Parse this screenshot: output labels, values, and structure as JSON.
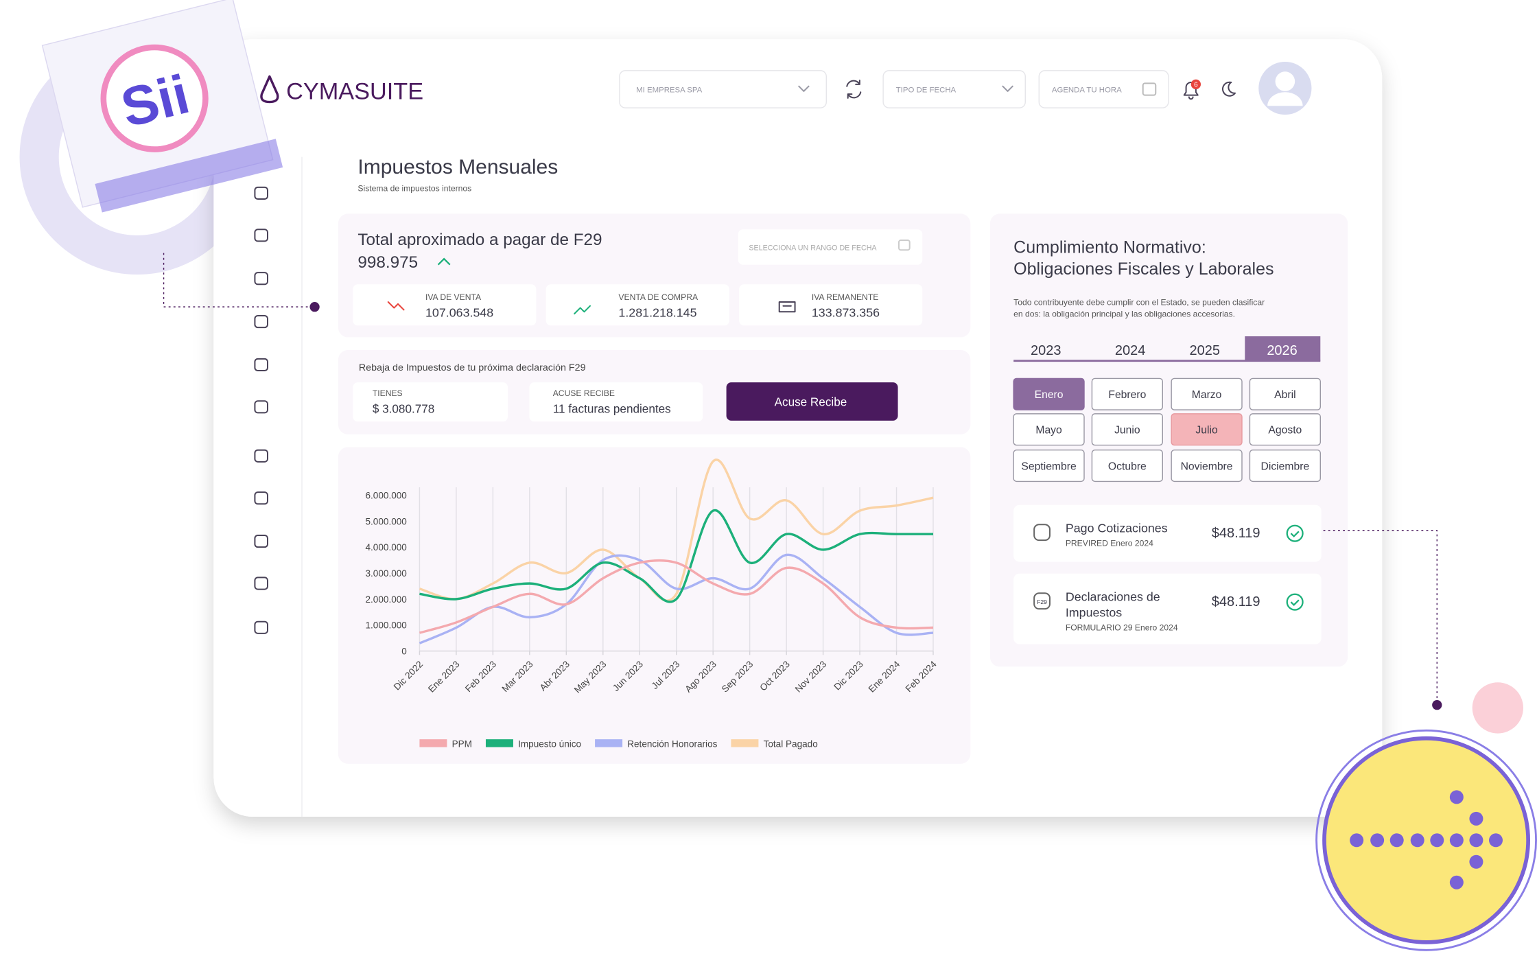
{
  "logo": {
    "sii": "Sii",
    "brand": "CYMASUITE"
  },
  "header": {
    "company_select": "MI EMPRESA SPA",
    "date_type": "TIPO DE FECHA",
    "agenda": "AGENDA TU HORA",
    "notifications": "6"
  },
  "page": {
    "title": "Impuestos Mensuales",
    "subtitle": "Sistema de impuestos internos"
  },
  "summary": {
    "title": "Total aproximado a pagar de F29",
    "total": "998.975",
    "date_range": "SELECCIONA UN RANGO DE FECHA",
    "cards": [
      {
        "label": "IVA DE VENTA",
        "value": "107.063.548"
      },
      {
        "label": "VENTA DE COMPRA",
        "value": "1.281.218.145"
      },
      {
        "label": "IVA REMANENTE",
        "value": "133.873.356"
      }
    ]
  },
  "rebate": {
    "title": "Rebaja de Impuestos de tu próxima declaración F29",
    "has_label": "TIENES",
    "has_value": "$ 3.080.778",
    "receipt_label": "ACUSE RECIBE",
    "receipt_value": "11 facturas pendientes",
    "button": "Acuse Recibe"
  },
  "chart_data": {
    "type": "line",
    "categories": [
      "Dic 2022",
      "Ene 2023",
      "Feb 2023",
      "Mar 2023",
      "Abr 2023",
      "May 2023",
      "Jun 2023",
      "Jul 2023",
      "Ago 2023",
      "Sep 2023",
      "Oct 2023",
      "Nov 2023",
      "Dic 2023",
      "Ene 2024",
      "Feb 2024"
    ],
    "series": [
      {
        "name": "PPM",
        "color": "#f4a9ae",
        "values": [
          700000,
          1100000,
          1700000,
          2200000,
          1800000,
          2800000,
          3400000,
          3400000,
          2600000,
          2200000,
          3200000,
          2600000,
          1300000,
          900000,
          900000
        ]
      },
      {
        "name": "Impuesto único",
        "color": "#1cb07a",
        "values": [
          2200000,
          2000000,
          2400000,
          2600000,
          2400000,
          3400000,
          2800000,
          2000000,
          5400000,
          3400000,
          4500000,
          3900000,
          4500000,
          4500000,
          4500000
        ]
      },
      {
        "name": "Retención Honorarios",
        "color": "#a9b2f4",
        "values": [
          300000,
          900000,
          1700000,
          1300000,
          1800000,
          3500000,
          3500000,
          2400000,
          2800000,
          2400000,
          3700000,
          2800000,
          1700000,
          700000,
          700000
        ]
      },
      {
        "name": "Total Pagado",
        "color": "#fad3a6",
        "values": [
          2400000,
          2000000,
          2600000,
          3400000,
          3000000,
          3900000,
          2800000,
          2200000,
          7300000,
          5100000,
          5800000,
          4500000,
          5400000,
          5600000,
          5900000
        ]
      }
    ],
    "ylim": [
      0,
      7600000
    ],
    "yticks": [
      0,
      {
        "value": 1000000,
        "label": "1.000.000"
      },
      {
        "value": 2000000,
        "label": "2.000.000"
      },
      {
        "value": 3000000,
        "label": "3.000.000"
      },
      {
        "value": 4000000,
        "label": "4.000.000"
      },
      {
        "value": 5000000,
        "label": "5.000.000"
      },
      {
        "value": 6000000,
        "label": "6.000.000"
      }
    ],
    "grid": true
  },
  "compliance": {
    "title": [
      "Cumplimiento Normativo:",
      "Obligaciones Fiscales y Laborales"
    ],
    "description": [
      "Todo contribuyente debe cumplir con el Estado, se pueden clasificar",
      "en dos: la obligación principal y las obligaciones accesorias."
    ],
    "years": [
      "2023",
      "2024",
      "2025",
      "2026"
    ],
    "months": [
      "Enero",
      "Febrero",
      "Marzo",
      "Abril",
      "Mayo",
      "Junio",
      "Julio",
      "Agosto",
      "Septiembre",
      "Octubre",
      "Noviembre",
      "Diciembre"
    ],
    "obligations": [
      {
        "title": [
          "Pago Cotizaciones"
        ],
        "subtitle": "PREVIRED Enero 2024",
        "amount": "$48.119"
      },
      {
        "icon_text": "F29",
        "title": [
          "Declaraciones de",
          "Impuestos"
        ],
        "subtitle": "FORMULARIO 29 Enero 2024",
        "amount": "$48.119"
      }
    ]
  }
}
